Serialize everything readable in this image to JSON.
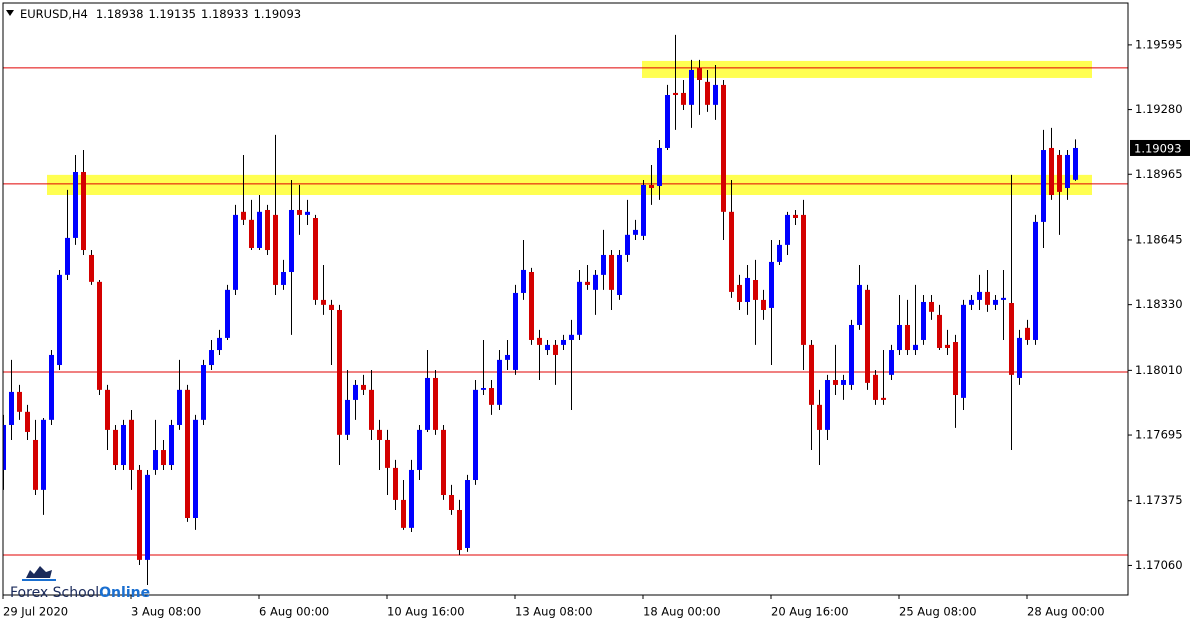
{
  "chart_data": {
    "type": "candlestick",
    "symbol": "EURUSD,H4",
    "categories": [
      "29 Jul 2020",
      null,
      null,
      null,
      null,
      null,
      null,
      null,
      null,
      null,
      null,
      null,
      null,
      null,
      null,
      null,
      "3 Aug 08:00",
      null,
      null,
      null,
      null,
      null,
      null,
      null,
      null,
      null,
      null,
      null,
      null,
      null,
      null,
      null,
      "6 Aug 00:00",
      null,
      null,
      null,
      null,
      null,
      null,
      null,
      null,
      null,
      null,
      null,
      null,
      null,
      null,
      null,
      "10 Aug 16:00",
      null,
      null,
      null,
      null,
      null,
      null,
      null,
      null,
      null,
      null,
      null,
      null,
      null,
      null,
      null,
      "13 Aug 08:00",
      null,
      null,
      null,
      null,
      null,
      null,
      null,
      null,
      null,
      null,
      null,
      null,
      null,
      null,
      null,
      "18 Aug 00:00",
      null,
      null,
      null,
      null,
      null,
      null,
      null,
      null,
      null,
      null,
      null,
      null,
      null,
      null,
      null,
      "20 Aug 16:00",
      null,
      null,
      null,
      null,
      null,
      null,
      null,
      null,
      null,
      null,
      null,
      null,
      null,
      null,
      null,
      "25 Aug 08:00",
      null,
      null,
      null,
      null,
      null,
      null,
      null,
      null,
      null,
      null,
      null,
      null,
      null,
      null,
      null,
      "28 Aug 00:00",
      null,
      null,
      null,
      null,
      null,
      null
    ],
    "open": [
      1.17525,
      1.17744,
      1.17905,
      1.17808,
      1.17671,
      1.17428,
      1.17769,
      1.18036,
      1.18475,
      1.18655,
      1.18976,
      1.18572,
      1.18441,
      1.17915,
      1.1772,
      1.17549,
      1.17769,
      1.17525,
      1.17087,
      1.17525,
      1.17622,
      1.17549,
      1.17744,
      1.17915,
      1.17291,
      1.17769,
      1.18036,
      1.18109,
      1.18168,
      1.18402,
      1.18782,
      1.18743,
      1.18606,
      1.18791,
      1.18767,
      1.18426,
      1.18489,
      1.18791,
      1.18767,
      1.18752,
      1.18353,
      1.18329,
      1.18304,
      1.17696,
      1.17866,
      1.17939,
      1.17915,
      1.1772,
      1.17671,
      1.17535,
      1.17379,
      1.17243,
      1.17525,
      1.1772,
      1.17973,
      1.1772,
      1.17403,
      1.1733,
      1.17145,
      1.17476,
      1.17915,
      1.17924,
      1.17842,
      1.18061,
      1.18012,
      1.18387,
      1.18489,
      1.18168,
      1.18109,
      1.18134,
      1.18134,
      1.18158,
      1.18183,
      1.18441,
      1.18402,
      1.18475,
      1.18572,
      1.18377,
      1.18572,
      1.1867,
      1.18665,
      1.18913,
      1.18908,
      1.19093,
      1.19361,
      1.19361,
      1.19303,
      1.19483,
      1.19415,
      1.19303,
      1.194,
      1.18782,
      1.18426,
      1.18343,
      1.1845,
      1.18353,
      1.18314,
      1.18538,
      1.18621,
      1.18767,
      1.18767,
      1.18134,
      1.17842,
      1.1772,
      1.17963,
      1.17939,
      1.17939,
      1.18231,
      1.18402,
      1.17988,
      1.17876,
      1.17988,
      1.18109,
      1.18231,
      1.18109,
      1.18158,
      1.18343,
      1.1828,
      1.18134,
      1.18148,
      1.17876,
      1.18329,
      1.18353,
      1.18392,
      1.18329,
      1.18353,
      1.18338,
      1.17973,
      1.18217,
      1.18158,
      1.18733,
      1.19093,
      1.19059,
      1.18898,
      1.18938
    ],
    "high": [
      1.17793,
      1.18061,
      1.17939,
      1.17842,
      1.17769,
      1.17778,
      1.18109,
      1.18499,
      1.18889,
      1.19059,
      1.19083,
      1.18596,
      1.1845,
      1.17939,
      1.17744,
      1.17769,
      1.17817,
      1.17549,
      1.17525,
      1.17769,
      1.17671,
      1.17769,
      1.18061,
      1.17939,
      1.17793,
      1.18061,
      1.18158,
      1.18207,
      1.18426,
      1.18816,
      1.19059,
      1.1884,
      1.18864,
      1.18816,
      1.19157,
      1.18548,
      1.18937,
      1.18913,
      1.1884,
      1.18767,
      1.18523,
      1.18353,
      1.18329,
      1.18012,
      1.17963,
      1.17988,
      1.18012,
      1.17769,
      1.1772,
      1.17574,
      1.17476,
      1.17574,
      1.17744,
      1.18109,
      1.18012,
      1.17744,
      1.17452,
      1.17379,
      1.17501,
      1.17963,
      1.18158,
      1.17963,
      1.18109,
      1.18158,
      1.18426,
      1.18645,
      1.18509,
      1.18207,
      1.18158,
      1.18158,
      1.18183,
      1.18256,
      1.18499,
      1.18523,
      1.18499,
      1.18694,
      1.18596,
      1.18596,
      1.1884,
      1.18743,
      1.18937,
      1.1901,
      1.19132,
      1.194,
      1.19644,
      1.19424,
      1.19522,
      1.19522,
      1.19473,
      1.19497,
      1.19424,
      1.18937,
      1.18475,
      1.18523,
      1.18548,
      1.18402,
      1.18645,
      1.18645,
      1.18782,
      1.18791,
      1.1884,
      1.18158,
      1.17915,
      1.17988,
      1.18134,
      1.17988,
      1.18256,
      1.18523,
      1.18426,
      1.18012,
      1.18109,
      1.18134,
      1.18377,
      1.18353,
      1.18426,
      1.18377,
      1.18377,
      1.18329,
      1.18207,
      1.18183,
      1.18353,
      1.18377,
      1.18475,
      1.18499,
      1.18377,
      1.18499,
      1.18962,
      1.18207,
      1.18256,
      1.18767,
      1.19181,
      1.19191,
      1.19083,
      1.19083,
      1.19135
    ],
    "low": [
      1.17428,
      1.17671,
      1.17769,
      1.17671,
      1.17403,
      1.17306,
      1.17744,
      1.18012,
      1.1845,
      1.18621,
      1.18572,
      1.18426,
      1.1789,
      1.17622,
      1.17525,
      1.17525,
      1.17428,
      1.17062,
      1.16965,
      1.17501,
      1.17525,
      1.17525,
      1.1772,
      1.17272,
      1.17233,
      1.17744,
      1.18012,
      1.18085,
      1.18158,
      1.18377,
      1.18718,
      1.18596,
      1.18596,
      1.18572,
      1.18377,
      1.18402,
      1.18183,
      1.1867,
      1.18718,
      1.18329,
      1.1828,
      1.18036,
      1.17549,
      1.17671,
      1.17769,
      1.1789,
      1.17671,
      1.17525,
      1.17403,
      1.1733,
      1.17233,
      1.17223,
      1.17476,
      1.1771,
      1.17696,
      1.17379,
      1.17306,
      1.17111,
      1.17126,
      1.17452,
      1.1789,
      1.17793,
      1.17817,
      1.18012,
      1.17988,
      1.18353,
      1.18134,
      1.17963,
      1.18085,
      1.17939,
      1.18109,
      1.17817,
      1.18158,
      1.18402,
      1.1828,
      1.18402,
      1.18304,
      1.18353,
      1.18538,
      1.18645,
      1.18645,
      1.18816,
      1.1884,
      1.19083,
      1.19181,
      1.19278,
      1.19191,
      1.19254,
      1.19269,
      1.1923,
      1.18645,
      1.18363,
      1.18304,
      1.1828,
      1.18134,
      1.18256,
      1.18036,
      1.18523,
      1.18572,
      1.18718,
      1.18012,
      1.17622,
      1.17549,
      1.17671,
      1.1789,
      1.17866,
      1.17915,
      1.18207,
      1.17915,
      1.17842,
      1.17842,
      1.17963,
      1.18085,
      1.18085,
      1.18085,
      1.18134,
      1.18256,
      1.18109,
      1.18085,
      1.1773,
      1.17817,
      1.18304,
      1.18304,
      1.18295,
      1.18304,
      1.18158,
      1.17622,
      1.17939,
      1.18134,
      1.18134,
      1.18606,
      1.1884,
      1.1867,
      1.1884,
      1.18933
    ],
    "close": [
      1.17744,
      1.17905,
      1.17808,
      1.1771,
      1.17428,
      1.17769,
      1.18085,
      1.18475,
      1.18655,
      1.18976,
      1.18596,
      1.18441,
      1.17915,
      1.1772,
      1.17549,
      1.17744,
      1.17525,
      1.17087,
      1.17501,
      1.17622,
      1.17549,
      1.17744,
      1.17915,
      1.17291,
      1.17769,
      1.18036,
      1.18109,
      1.18168,
      1.18402,
      1.18767,
      1.18743,
      1.18606,
      1.18782,
      1.18596,
      1.18426,
      1.18489,
      1.18791,
      1.18767,
      1.18782,
      1.18353,
      1.18329,
      1.18304,
      1.17696,
      1.17866,
      1.17939,
      1.17915,
      1.1772,
      1.17671,
      1.17535,
      1.17379,
      1.17243,
      1.17525,
      1.1772,
      1.17973,
      1.1772,
      1.17403,
      1.1733,
      1.17135,
      1.17476,
      1.17915,
      1.17924,
      1.17842,
      1.18061,
      1.18085,
      1.18387,
      1.18499,
      1.18158,
      1.18134,
      1.18134,
      1.18085,
      1.18158,
      1.18183,
      1.18441,
      1.18426,
      1.18475,
      1.18572,
      1.18402,
      1.18572,
      1.1867,
      1.18694,
      1.18913,
      1.18898,
      1.19093,
      1.19351,
      1.19351,
      1.19303,
      1.19473,
      1.19424,
      1.19303,
      1.194,
      1.18782,
      1.18392,
      1.18343,
      1.1846,
      1.18353,
      1.18304,
      1.18538,
      1.18621,
      1.18767,
      1.18752,
      1.18134,
      1.17842,
      1.1772,
      1.17963,
      1.17939,
      1.17963,
      1.18231,
      1.18426,
      1.17949,
      1.17866,
      1.17866,
      1.18109,
      1.18231,
      1.18109,
      1.18134,
      1.18343,
      1.18295,
      1.18119,
      1.18119,
      1.1789,
      1.18329,
      1.18353,
      1.18392,
      1.18329,
      1.18353,
      1.18363,
      1.17988,
      1.18168,
      1.18158,
      1.18733,
      1.19083,
      1.18864,
      1.18879,
      1.19059,
      1.19093
    ],
    "ylim": [
      1.16916,
      1.19799
    ],
    "yticks": [
      1.19595,
      {
        "value": 1.1928,
        "label": "1.19280"
      },
      1.18965,
      1.18645,
      {
        "value": 1.1833,
        "label": "1.18330"
      },
      {
        "value": 1.1801,
        "label": "1.18010"
      },
      1.17695,
      1.17375,
      {
        "value": 1.1706,
        "label": "1.17060"
      }
    ],
    "up_color": "#0000ff",
    "down_color": "#d40000",
    "wick_color": "#000000",
    "levels": [
      1.19483,
      1.18918,
      1.18002,
      1.17111
    ],
    "level_color": "#e00000",
    "zones": [
      {
        "low": 1.19434,
        "high": 1.19517
      },
      {
        "low": 1.18864,
        "high": 1.18962
      }
    ],
    "zone_color": "#ffff33"
  },
  "logo": {
    "text": "Forex School",
    "highlight": "Online"
  }
}
